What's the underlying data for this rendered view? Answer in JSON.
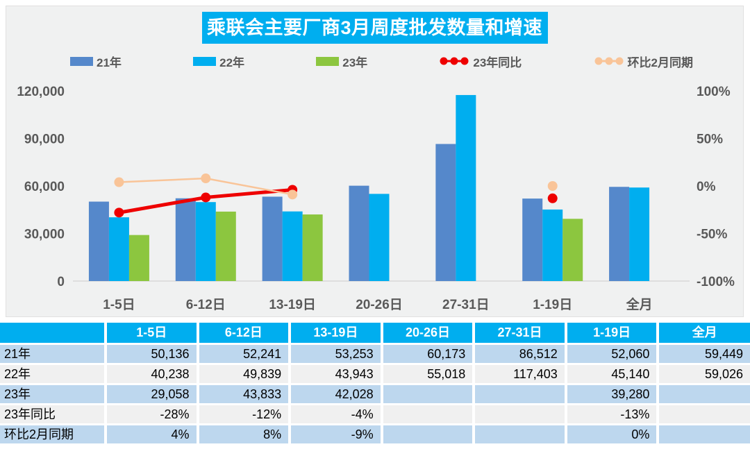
{
  "colors": {
    "accent_cyan": "#00AEEF",
    "bar_blue": "#5588CB",
    "bar_cyan": "#00AEEF",
    "bar_green": "#8CC63F",
    "line_red": "#EE0000",
    "line_peach": "#F9C498",
    "axis_text": "#595959",
    "table_row_blue": "#BDD7EE",
    "table_row_gray": "#F0F0F0",
    "panel_bg": "#F0F1F1"
  },
  "legend": {
    "items": [
      {
        "label": "21年",
        "type": "bar",
        "color": "#5588CB"
      },
      {
        "label": "22年",
        "type": "bar",
        "color": "#00AEEF"
      },
      {
        "label": "23年",
        "type": "bar",
        "color": "#8CC63F"
      },
      {
        "label": "23年同比",
        "type": "line",
        "color": "#EE0000"
      },
      {
        "label": "环比2月同期",
        "type": "line",
        "color": "#F9C498"
      }
    ]
  },
  "chart_data": {
    "type": "bar+line combo",
    "title": "乘联会主要厂商3月周度批发数量和增速",
    "categories": [
      "1-5日",
      "6-12日",
      "13-19日",
      "20-26日",
      "27-31日",
      "1-19日",
      "全月"
    ],
    "left_axis": {
      "ticks": [
        0,
        30000,
        60000,
        90000,
        120000
      ],
      "min": 0,
      "max": 120000
    },
    "right_axis": {
      "ticks_pct": [
        -100,
        -50,
        0,
        50,
        100
      ],
      "min": -100,
      "max": 100
    },
    "bar_series": [
      {
        "name": "21年",
        "color": "#5588CB",
        "values": [
          50136,
          52241,
          53253,
          60173,
          86512,
          52060,
          59449
        ]
      },
      {
        "name": "22年",
        "color": "#00AEEF",
        "values": [
          40238,
          49839,
          43943,
          55018,
          117403,
          45140,
          59026
        ]
      },
      {
        "name": "23年",
        "color": "#8CC63F",
        "values": [
          29058,
          43833,
          42028,
          null,
          null,
          39280,
          null
        ]
      }
    ],
    "line_series": [
      {
        "name": "23年同比",
        "color": "#EE0000",
        "width": 5,
        "values_pct": [
          -28,
          -12,
          -4,
          null,
          null,
          -13,
          null
        ]
      },
      {
        "name": "环比2月同期",
        "color": "#F9C498",
        "width": 2.5,
        "values_pct": [
          4,
          8,
          -9,
          null,
          null,
          0,
          null
        ]
      }
    ],
    "legend_position": "top",
    "grid": false
  },
  "table": {
    "col_headers": [
      "",
      "1-5日",
      "6-12日",
      "13-19日",
      "20-26日",
      "27-31日",
      "1-19日",
      "全月"
    ],
    "rows": [
      {
        "label": "21年",
        "cells": [
          "50,136",
          "52,241",
          "53,253",
          "60,173",
          "86,512",
          "52,060",
          "59,449"
        ]
      },
      {
        "label": "22年",
        "cells": [
          "40,238",
          "49,839",
          "43,943",
          "55,018",
          "117,403",
          "45,140",
          "59,026"
        ]
      },
      {
        "label": "23年",
        "cells": [
          "29,058",
          "43,833",
          "42,028",
          "",
          "",
          "39,280",
          ""
        ]
      },
      {
        "label": "23年同比",
        "cells": [
          "-28%",
          "-12%",
          "-4%",
          "",
          "",
          "-13%",
          ""
        ]
      },
      {
        "label": "环比2月同期",
        "cells": [
          "4%",
          "8%",
          "-9%",
          "",
          "",
          "0%",
          ""
        ]
      }
    ]
  }
}
